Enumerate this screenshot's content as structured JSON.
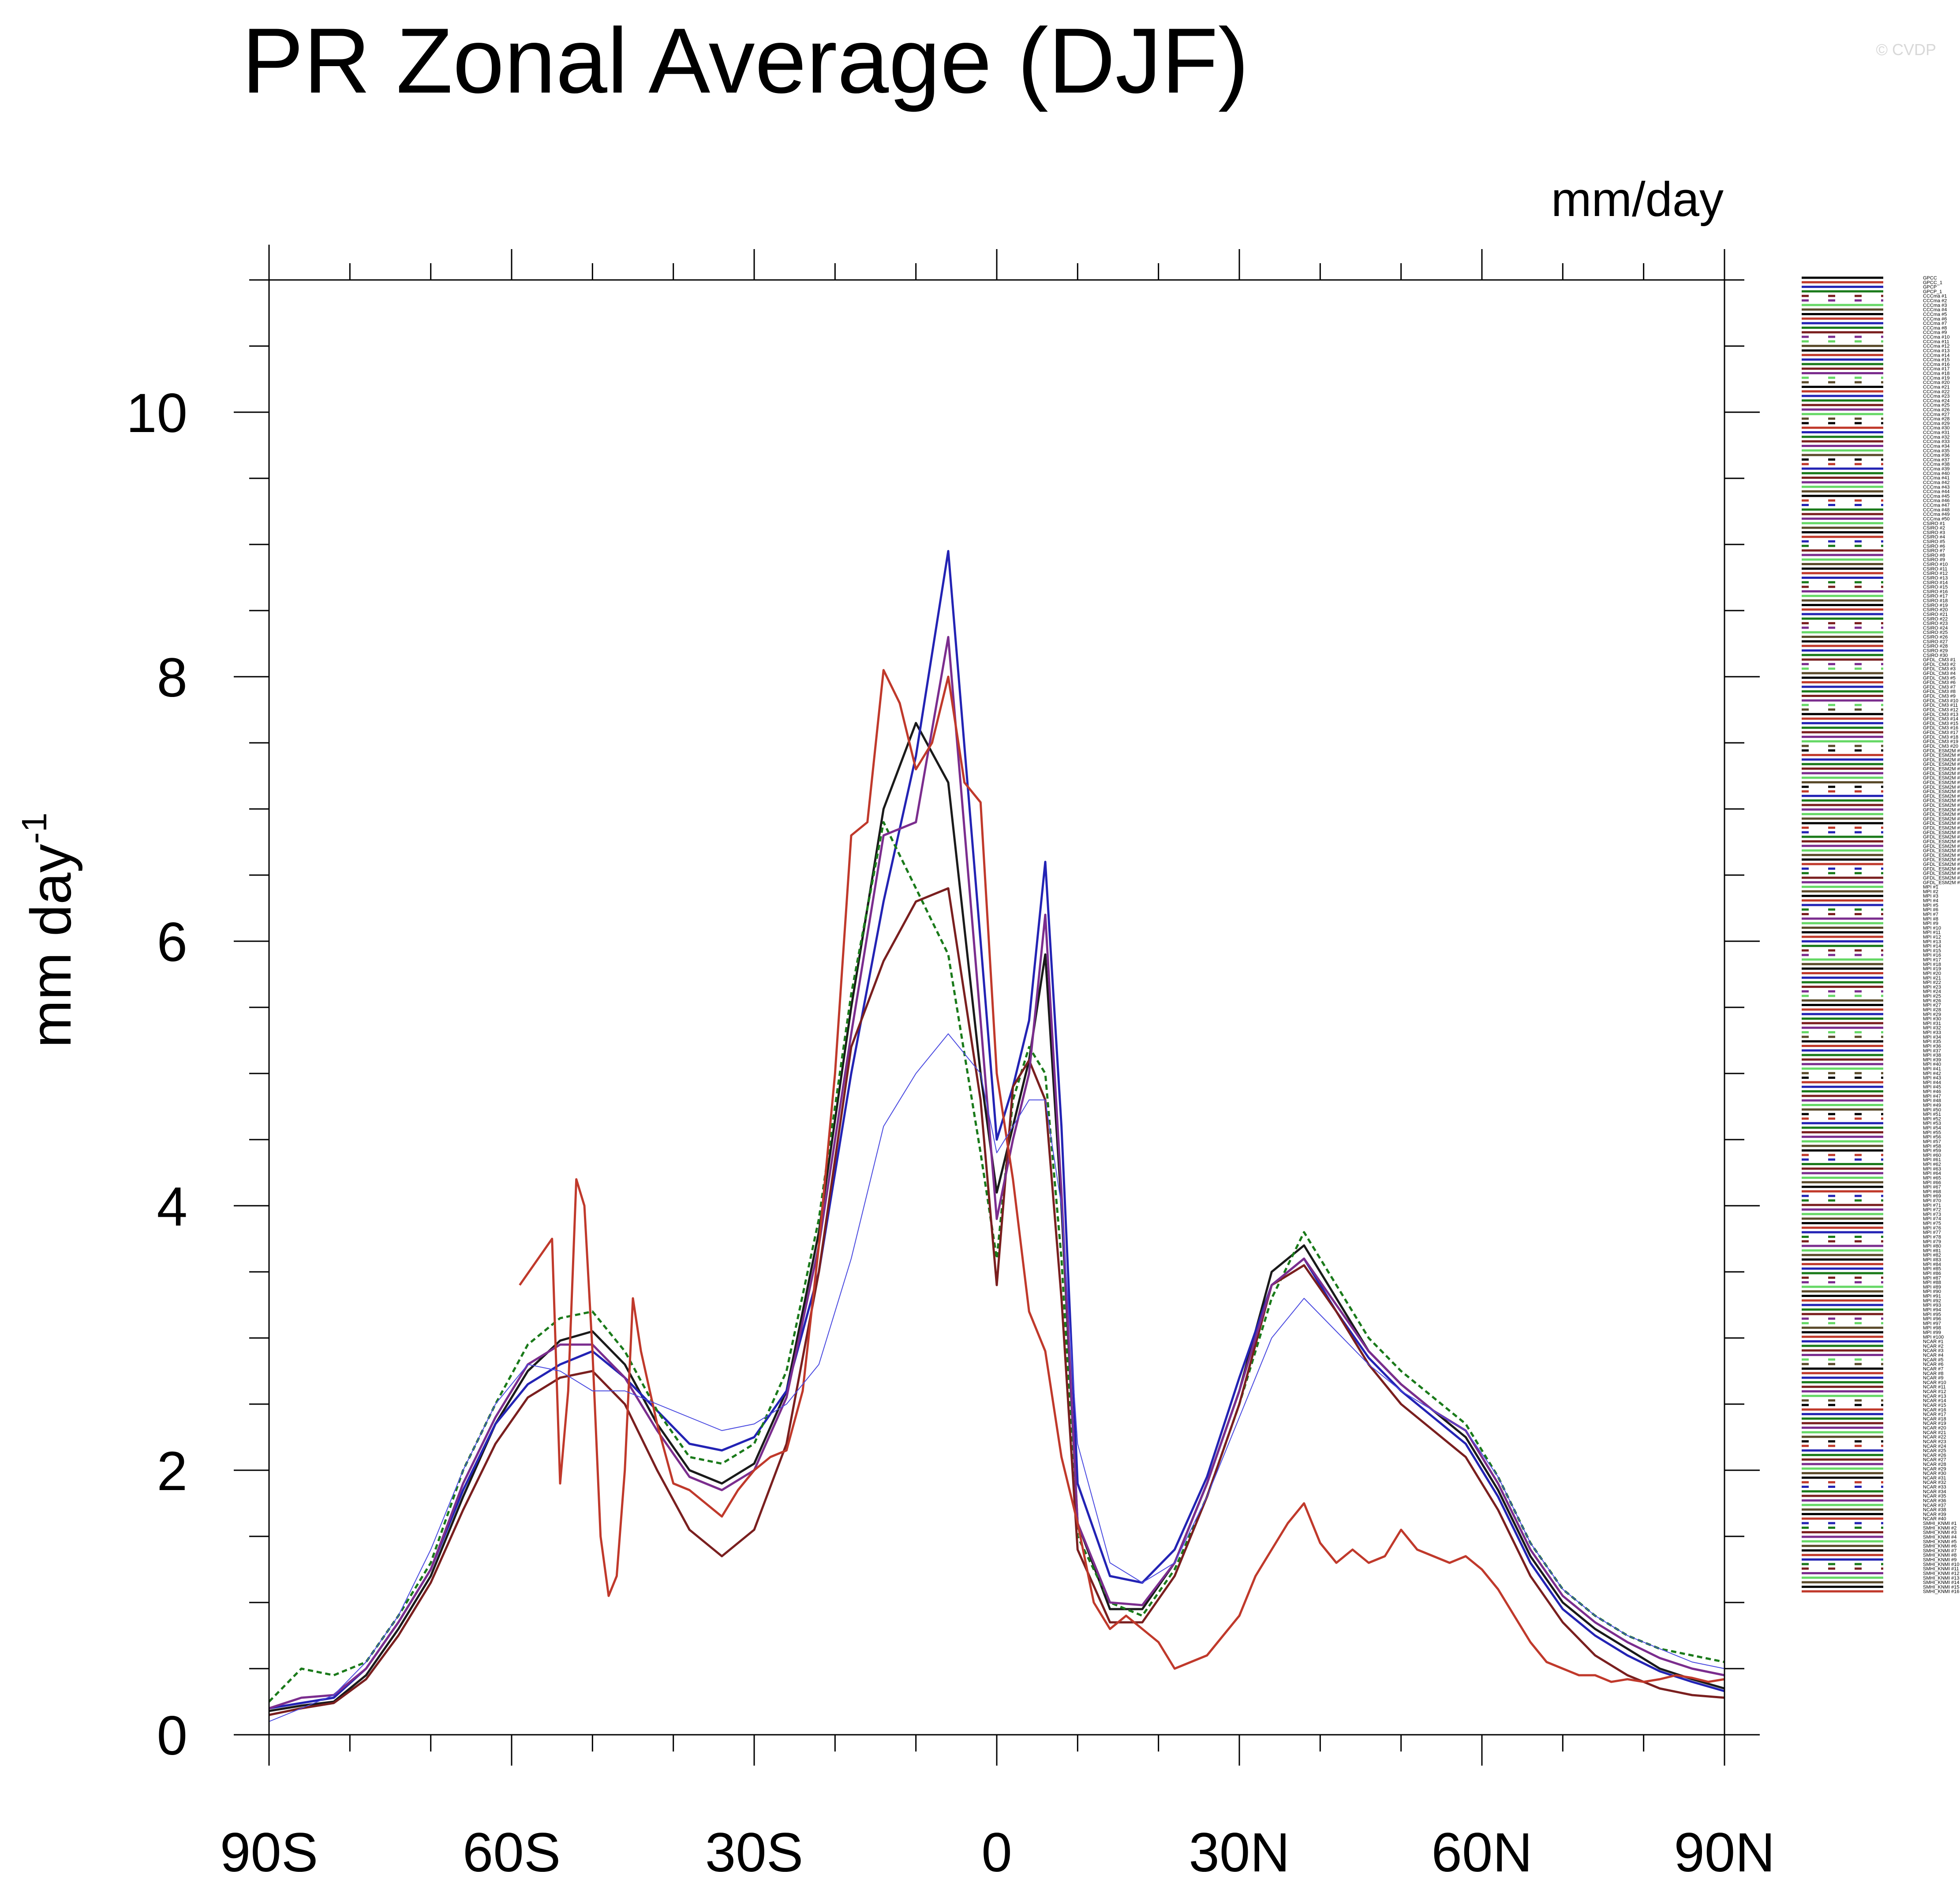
{
  "watermark": "© CVDP",
  "chart_data": {
    "type": "line",
    "title": "PR Zonal Average (DJF)",
    "units": "mm/day",
    "xlabel": "",
    "ylabel": "mm day",
    "ylabel_superscript": "-1",
    "xlim": [
      -90,
      90
    ],
    "ylim": [
      0,
      11
    ],
    "x_ticks": [
      {
        "value": -90,
        "label": "90S"
      },
      {
        "value": -60,
        "label": "60S"
      },
      {
        "value": -30,
        "label": "30S"
      },
      {
        "value": 0,
        "label": "0"
      },
      {
        "value": 30,
        "label": "30N"
      },
      {
        "value": 60,
        "label": "60N"
      },
      {
        "value": 90,
        "label": "90N"
      }
    ],
    "y_ticks": [
      {
        "value": 0,
        "label": "0"
      },
      {
        "value": 2,
        "label": "2"
      },
      {
        "value": 4,
        "label": "4"
      },
      {
        "value": 6,
        "label": "6"
      },
      {
        "value": 8,
        "label": "8"
      },
      {
        "value": 10,
        "label": "10"
      }
    ],
    "grid": false,
    "legend_position": "right",
    "colors": [
      "#000000",
      "#c0392b",
      "#2323b4",
      "#1a7a1a",
      "#7a1f1f",
      "#7b2d8e",
      "#66d866",
      "#5a4a2a"
    ],
    "series": [
      {
        "color": "#1a1a1a",
        "dash": "",
        "x": [
          -90,
          -86,
          -82,
          -78,
          -74,
          -70,
          -66,
          -62,
          -58,
          -54,
          -50,
          -46,
          -42,
          -38,
          -34,
          -30,
          -26,
          -22,
          -18,
          -14,
          -10,
          -6,
          -2,
          0,
          2,
          4,
          6,
          8,
          10,
          14,
          18,
          22,
          26,
          30,
          34,
          38,
          42,
          46,
          50,
          54,
          58,
          62,
          66,
          70,
          74,
          78,
          82,
          86,
          90
        ],
        "y": [
          0.18,
          0.22,
          0.25,
          0.45,
          0.8,
          1.2,
          1.8,
          2.35,
          2.75,
          2.98,
          3.05,
          2.8,
          2.35,
          2.0,
          1.9,
          2.05,
          2.6,
          3.8,
          5.5,
          7.0,
          7.65,
          7.2,
          5.0,
          4.1,
          4.6,
          5.1,
          5.9,
          4.0,
          1.6,
          0.95,
          0.95,
          1.3,
          1.9,
          2.6,
          3.5,
          3.7,
          3.3,
          2.9,
          2.65,
          2.45,
          2.25,
          1.85,
          1.35,
          1.0,
          0.8,
          0.65,
          0.5,
          0.42,
          0.35
        ]
      },
      {
        "color": "#2323b4",
        "dash": "",
        "x": [
          -90,
          -86,
          -82,
          -78,
          -74,
          -70,
          -66,
          -62,
          -58,
          -54,
          -50,
          -46,
          -42,
          -38,
          -34,
          -30,
          -26,
          -22,
          -18,
          -14,
          -10,
          -6,
          -2,
          0,
          2,
          4,
          6,
          8,
          10,
          14,
          18,
          22,
          26,
          30,
          34,
          38,
          42,
          46,
          50,
          54,
          58,
          62,
          66,
          70,
          74,
          78,
          82,
          86,
          90
        ],
        "y": [
          0.2,
          0.24,
          0.28,
          0.5,
          0.85,
          1.25,
          1.85,
          2.35,
          2.65,
          2.8,
          2.9,
          2.7,
          2.45,
          2.2,
          2.15,
          2.25,
          2.6,
          3.5,
          5.0,
          6.3,
          7.4,
          8.95,
          6.0,
          4.5,
          4.9,
          5.4,
          6.6,
          4.6,
          1.9,
          1.2,
          1.15,
          1.4,
          1.95,
          2.7,
          3.4,
          3.6,
          3.2,
          2.85,
          2.6,
          2.4,
          2.2,
          1.8,
          1.3,
          0.95,
          0.75,
          0.6,
          0.48,
          0.4,
          0.33
        ]
      },
      {
        "color": "#1a7a1a",
        "dash": "12,8",
        "x": [
          -90,
          -86,
          -82,
          -78,
          -74,
          -70,
          -66,
          -62,
          -58,
          -54,
          -50,
          -46,
          -42,
          -38,
          -34,
          -30,
          -26,
          -22,
          -18,
          -14,
          -10,
          -6,
          -2,
          0,
          2,
          4,
          6,
          8,
          10,
          14,
          18,
          22,
          26,
          30,
          34,
          38,
          42,
          46,
          50,
          54,
          58,
          62,
          66,
          70,
          74,
          78,
          82,
          86,
          90
        ],
        "y": [
          0.25,
          0.5,
          0.45,
          0.55,
          0.9,
          1.3,
          2.0,
          2.5,
          2.95,
          3.15,
          3.2,
          2.9,
          2.45,
          2.1,
          2.05,
          2.2,
          2.75,
          3.9,
          5.6,
          6.9,
          6.4,
          5.9,
          4.4,
          3.6,
          4.8,
          5.2,
          5.0,
          3.6,
          1.5,
          1.0,
          0.9,
          1.25,
          1.8,
          2.5,
          3.3,
          3.8,
          3.4,
          3.0,
          2.75,
          2.55,
          2.35,
          1.95,
          1.45,
          1.1,
          0.9,
          0.75,
          0.65,
          0.6,
          0.55
        ]
      },
      {
        "color": "#7a1f1f",
        "dash": "",
        "x": [
          -90,
          -86,
          -82,
          -78,
          -74,
          -70,
          -66,
          -62,
          -58,
          -54,
          -50,
          -46,
          -42,
          -38,
          -34,
          -30,
          -26,
          -22,
          -18,
          -14,
          -10,
          -6,
          -2,
          0,
          2,
          4,
          6,
          8,
          10,
          14,
          18,
          22,
          26,
          30,
          34,
          38,
          42,
          46,
          50,
          54,
          58,
          62,
          66,
          70,
          74,
          78,
          82,
          86,
          90
        ],
        "y": [
          0.15,
          0.2,
          0.24,
          0.42,
          0.75,
          1.15,
          1.7,
          2.2,
          2.55,
          2.7,
          2.75,
          2.5,
          2.0,
          1.55,
          1.35,
          1.55,
          2.2,
          3.5,
          5.2,
          5.85,
          6.3,
          6.4,
          4.8,
          3.4,
          4.9,
          5.1,
          4.8,
          3.3,
          1.4,
          0.85,
          0.85,
          1.2,
          1.8,
          2.5,
          3.4,
          3.55,
          3.2,
          2.8,
          2.5,
          2.3,
          2.1,
          1.7,
          1.2,
          0.85,
          0.6,
          0.45,
          0.35,
          0.3,
          0.28
        ]
      },
      {
        "color": "#7b2d8e",
        "dash": "",
        "x": [
          -90,
          -86,
          -82,
          -78,
          -74,
          -70,
          -66,
          -62,
          -58,
          -54,
          -50,
          -46,
          -42,
          -38,
          -34,
          -30,
          -26,
          -22,
          -18,
          -14,
          -10,
          -6,
          -2,
          0,
          2,
          4,
          6,
          8,
          10,
          14,
          18,
          22,
          26,
          30,
          34,
          38,
          42,
          46,
          50,
          54,
          58,
          62,
          66,
          70,
          74,
          78,
          82,
          86,
          90
        ],
        "y": [
          0.2,
          0.28,
          0.3,
          0.5,
          0.85,
          1.25,
          1.9,
          2.4,
          2.8,
          2.95,
          2.95,
          2.7,
          2.3,
          1.95,
          1.85,
          2.0,
          2.55,
          3.7,
          5.3,
          6.8,
          6.9,
          8.3,
          5.4,
          3.9,
          4.5,
          5.0,
          6.2,
          4.1,
          1.6,
          1.0,
          0.98,
          1.3,
          1.9,
          2.6,
          3.4,
          3.6,
          3.25,
          2.9,
          2.65,
          2.45,
          2.3,
          1.9,
          1.4,
          1.05,
          0.85,
          0.7,
          0.58,
          0.5,
          0.45
        ]
      },
      {
        "color": "#c0392b",
        "dash": "",
        "x": [
          -59,
          -55,
          -54,
          -53,
          -52,
          -51,
          -50,
          -49,
          -48,
          -47,
          -46,
          -45,
          -44,
          -42,
          -40,
          -38,
          -36,
          -34,
          -32,
          -30,
          -28,
          -26,
          -24,
          -22,
          -20,
          -18,
          -16,
          -14,
          -12,
          -10,
          -8,
          -6,
          -4,
          -2,
          0,
          2,
          4,
          6,
          8,
          10,
          12,
          14,
          16,
          18,
          20,
          22,
          24,
          26,
          28,
          30,
          32,
          34,
          36,
          38,
          40,
          42,
          44,
          46,
          48,
          50,
          52,
          54,
          56,
          58,
          60,
          62,
          64,
          66,
          68,
          70,
          72,
          74,
          76,
          78,
          80,
          82,
          84,
          86,
          88,
          90
        ],
        "y": [
          3.4,
          3.75,
          1.9,
          2.6,
          4.2,
          4.0,
          2.9,
          1.5,
          1.05,
          1.2,
          2.0,
          3.3,
          2.9,
          2.35,
          1.9,
          1.85,
          1.75,
          1.65,
          1.85,
          2.0,
          2.1,
          2.15,
          2.6,
          3.7,
          5.0,
          6.8,
          6.9,
          8.05,
          7.8,
          7.3,
          7.5,
          8.0,
          7.2,
          7.05,
          5.0,
          4.2,
          3.2,
          2.9,
          2.1,
          1.6,
          1.0,
          0.8,
          0.9,
          0.8,
          0.7,
          0.5,
          0.55,
          0.6,
          0.75,
          0.9,
          1.2,
          1.4,
          1.6,
          1.75,
          1.45,
          1.3,
          1.4,
          1.3,
          1.35,
          1.55,
          1.4,
          1.35,
          1.3,
          1.35,
          1.25,
          1.1,
          0.9,
          0.7,
          0.55,
          0.5,
          0.45,
          0.45,
          0.4,
          0.42,
          0.4,
          0.42,
          0.45,
          0.43,
          0.4,
          0.42
        ]
      },
      {
        "color": "#4a4ae0",
        "dash": "",
        "width": 2,
        "x": [
          -90,
          -86,
          -82,
          -78,
          -74,
          -70,
          -66,
          -62,
          -58,
          -54,
          -50,
          -46,
          -42,
          -38,
          -34,
          -30,
          -26,
          -22,
          -18,
          -14,
          -10,
          -6,
          -2,
          0,
          2,
          4,
          6,
          8,
          10,
          14,
          18,
          22,
          26,
          30,
          34,
          38,
          42,
          46,
          50,
          54,
          58,
          62,
          66,
          70,
          74,
          78,
          82,
          86,
          90
        ],
        "y": [
          0.1,
          0.2,
          0.3,
          0.55,
          0.9,
          1.4,
          2.0,
          2.5,
          2.8,
          2.75,
          2.6,
          2.6,
          2.5,
          2.4,
          2.3,
          2.35,
          2.5,
          2.8,
          3.6,
          4.6,
          5.0,
          5.3,
          5.0,
          4.4,
          4.6,
          4.8,
          4.8,
          4.0,
          2.2,
          1.3,
          1.15,
          1.3,
          1.8,
          2.4,
          3.0,
          3.3,
          3.05,
          2.8,
          2.6,
          2.45,
          2.3,
          1.95,
          1.45,
          1.1,
          0.9,
          0.75,
          0.65,
          0.55,
          0.5
        ]
      }
    ],
    "legend_entries": [
      "GPCC",
      "GPCC_1",
      "GPCP",
      "GPCP_1",
      "CCCma #1",
      "CCCma #2",
      "CCCma #3",
      "CCCma #4",
      "CCCma #5",
      "CCCma #6",
      "CCCma #7",
      "CCCma #8",
      "CCCma #9",
      "CCCma #10",
      "CCCma #11",
      "CCCma #12",
      "CCCma #13",
      "CCCma #14",
      "CCCma #15",
      "CCCma #16",
      "CCCma #17",
      "CCCma #18",
      "CCCma #19",
      "CCCma #20",
      "CCCma #21",
      "CCCma #22",
      "CCCma #23",
      "CCCma #24",
      "CCCma #25",
      "CCCma #26",
      "CCCma #27",
      "CCCma #28",
      "CCCma #29",
      "CCCma #30",
      "CCCma #31",
      "CCCma #32",
      "CCCma #33",
      "CCCma #34",
      "CCCma #35",
      "CCCma #36",
      "CCCma #37",
      "CCCma #38",
      "CCCma #39",
      "CCCma #40",
      "CCCma #41",
      "CCCma #42",
      "CCCma #43",
      "CCCma #44",
      "CCCma #45",
      "CCCma #46",
      "CCCma #47",
      "CCCma #48",
      "CCCma #49",
      "CCCma #50",
      "CSIRO #1",
      "CSIRO #2",
      "CSIRO #3",
      "CSIRO #4",
      "CSIRO #5",
      "CSIRO #6",
      "CSIRO #7",
      "CSIRO #8",
      "CSIRO #9",
      "CSIRO #10",
      "CSIRO #11",
      "CSIRO #12",
      "CSIRO #13",
      "CSIRO #14",
      "CSIRO #15",
      "CSIRO #16",
      "CSIRO #17",
      "CSIRO #18",
      "CSIRO #19",
      "CSIRO #20",
      "CSIRO #21",
      "CSIRO #22",
      "CSIRO #23",
      "CSIRO #24",
      "CSIRO #25",
      "CSIRO #26",
      "CSIRO #27",
      "CSIRO #28",
      "CSIRO #29",
      "CSIRO #30",
      "GFDL_CM3 #1",
      "GFDL_CM3 #2",
      "GFDL_CM3 #3",
      "GFDL_CM3 #4",
      "GFDL_CM3 #5",
      "GFDL_CM3 #6",
      "GFDL_CM3 #7",
      "GFDL_CM3 #8",
      "GFDL_CM3 #9",
      "GFDL_CM3 #10",
      "GFDL_CM3 #11",
      "GFDL_CM3 #12",
      "GFDL_CM3 #13",
      "GFDL_CM3 #14",
      "GFDL_CM3 #15",
      "GFDL_CM3 #16",
      "GFDL_CM3 #17",
      "GFDL_CM3 #18",
      "GFDL_CM3 #19",
      "GFDL_CM3 #20",
      "GFDL_ESM2M #1",
      "GFDL_ESM2M #2",
      "GFDL_ESM2M #3",
      "GFDL_ESM2M #4",
      "GFDL_ESM2M #5",
      "GFDL_ESM2M #6",
      "GFDL_ESM2M #7",
      "GFDL_ESM2M #8",
      "GFDL_ESM2M #9",
      "GFDL_ESM2M #10",
      "GFDL_ESM2M #11",
      "GFDL_ESM2M #12",
      "GFDL_ESM2M #13",
      "GFDL_ESM2M #14",
      "GFDL_ESM2M #15",
      "GFDL_ESM2M #16",
      "GFDL_ESM2M #17",
      "GFDL_ESM2M #18",
      "GFDL_ESM2M #19",
      "GFDL_ESM2M #20",
      "GFDL_ESM2M #21",
      "GFDL_ESM2M #22",
      "GFDL_ESM2M #23",
      "GFDL_ESM2M #24",
      "GFDL_ESM2M #25",
      "GFDL_ESM2M #26",
      "GFDL_ESM2M #27",
      "GFDL_ESM2M #28",
      "GFDL_ESM2M #29",
      "GFDL_ESM2M #30",
      "MPI #1",
      "MPI #2",
      "MPI #3",
      "MPI #4",
      "MPI #5",
      "MPI #6",
      "MPI #7",
      "MPI #8",
      "MPI #9",
      "MPI #10",
      "MPI #11",
      "MPI #12",
      "MPI #13",
      "MPI #14",
      "MPI #15",
      "MPI #16",
      "MPI #17",
      "MPI #18",
      "MPI #19",
      "MPI #20",
      "MPI #21",
      "MPI #22",
      "MPI #23",
      "MPI #24",
      "MPI #25",
      "MPI #26",
      "MPI #27",
      "MPI #28",
      "MPI #29",
      "MPI #30",
      "MPI #31",
      "MPI #32",
      "MPI #33",
      "MPI #34",
      "MPI #35",
      "MPI #36",
      "MPI #37",
      "MPI #38",
      "MPI #39",
      "MPI #40",
      "MPI #41",
      "MPI #42",
      "MPI #43",
      "MPI #44",
      "MPI #45",
      "MPI #46",
      "MPI #47",
      "MPI #48",
      "MPI #49",
      "MPI #50",
      "MPI #51",
      "MPI #52",
      "MPI #53",
      "MPI #54",
      "MPI #55",
      "MPI #56",
      "MPI #57",
      "MPI #58",
      "MPI #59",
      "MPI #60",
      "MPI #61",
      "MPI #62",
      "MPI #63",
      "MPI #64",
      "MPI #65",
      "MPI #66",
      "MPI #67",
      "MPI #68",
      "MPI #69",
      "MPI #70",
      "MPI #71",
      "MPI #72",
      "MPI #73",
      "MPI #74",
      "MPI #75",
      "MPI #76",
      "MPI #77",
      "MPI #78",
      "MPI #79",
      "MPI #80",
      "MPI #81",
      "MPI #82",
      "MPI #83",
      "MPI #84",
      "MPI #85",
      "MPI #86",
      "MPI #87",
      "MPI #88",
      "MPI #89",
      "MPI #90",
      "MPI #91",
      "MPI #92",
      "MPI #93",
      "MPI #94",
      "MPI #95",
      "MPI #96",
      "MPI #97",
      "MPI #98",
      "MPI #99",
      "MPI #100",
      "NCAR #1",
      "NCAR #2",
      "NCAR #3",
      "NCAR #4",
      "NCAR #5",
      "NCAR #6",
      "NCAR #7",
      "NCAR #8",
      "NCAR #9",
      "NCAR #10",
      "NCAR #11",
      "NCAR #12",
      "NCAR #13",
      "NCAR #14",
      "NCAR #15",
      "NCAR #16",
      "NCAR #17",
      "NCAR #18",
      "NCAR #19",
      "NCAR #20",
      "NCAR #21",
      "NCAR #22",
      "NCAR #23",
      "NCAR #24",
      "NCAR #25",
      "NCAR #26",
      "NCAR #27",
      "NCAR #28",
      "NCAR #29",
      "NCAR #30",
      "NCAR #31",
      "NCAR #32",
      "NCAR #33",
      "NCAR #34",
      "NCAR #35",
      "NCAR #36",
      "NCAR #37",
      "NCAR #38",
      "NCAR #39",
      "NCAR #40",
      "SMHI_KNMI #1",
      "SMHI_KNMI #2",
      "SMHI_KNMI #3",
      "SMHI_KNMI #4",
      "SMHI_KNMI #5",
      "SMHI_KNMI #6",
      "SMHI_KNMI #7",
      "SMHI_KNMI #8",
      "SMHI_KNMI #9",
      "SMHI_KNMI #10",
      "SMHI_KNMI #11",
      "SMHI_KNMI #12",
      "SMHI_KNMI #13",
      "SMHI_KNMI #14",
      "SMHI_KNMI #15",
      "SMHI_KNMI #16"
    ]
  }
}
